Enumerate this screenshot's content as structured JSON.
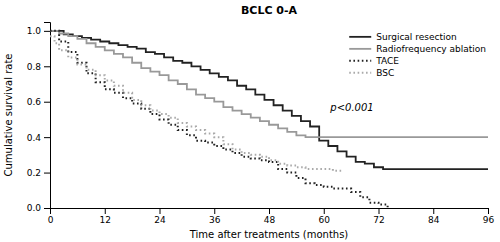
{
  "chart_data": {
    "type": "step",
    "title": "BCLC 0-A",
    "xlabel": "Time after treatments (months)",
    "ylabel": "Cumulative survival rate",
    "annotation": "p<0.001",
    "xlim": [
      0,
      96
    ],
    "ylim": [
      0.0,
      1.05
    ],
    "xticks": [
      0,
      12,
      24,
      36,
      48,
      60,
      72,
      84,
      96
    ],
    "yticks": [
      {
        "value": 0.0,
        "label": "0.0"
      },
      0.2,
      0.4,
      0.6,
      0.8,
      {
        "value": 1.0,
        "label": "1.0"
      }
    ],
    "legend": "upper-right",
    "series": [
      {
        "name": "Surgical resection",
        "color": "#222222",
        "line_style": "solid",
        "x": [
          0,
          3,
          5,
          7,
          9,
          11,
          13,
          15,
          17,
          19,
          21,
          23,
          25,
          27,
          29,
          31,
          33,
          35,
          37,
          39,
          41,
          43,
          45,
          47,
          49,
          51,
          53,
          55,
          57,
          59,
          61,
          63,
          65,
          67,
          69,
          71,
          73,
          96
        ],
        "values": [
          1.0,
          0.98,
          0.97,
          0.96,
          0.95,
          0.94,
          0.93,
          0.92,
          0.91,
          0.9,
          0.88,
          0.87,
          0.85,
          0.83,
          0.82,
          0.8,
          0.78,
          0.76,
          0.74,
          0.72,
          0.69,
          0.67,
          0.64,
          0.61,
          0.58,
          0.55,
          0.52,
          0.49,
          0.46,
          0.38,
          0.35,
          0.32,
          0.29,
          0.26,
          0.25,
          0.23,
          0.22,
          0.22
        ]
      },
      {
        "name": "Radiofrequency ablation",
        "color": "#999999",
        "line_style": "solid",
        "x": [
          0,
          2,
          4,
          6,
          8,
          10,
          12,
          14,
          16,
          18,
          20,
          22,
          24,
          26,
          28,
          30,
          32,
          34,
          36,
          38,
          40,
          42,
          44,
          46,
          48,
          50,
          52,
          54,
          56,
          58,
          60,
          96
        ],
        "values": [
          1.0,
          0.985,
          0.97,
          0.955,
          0.93,
          0.91,
          0.89,
          0.87,
          0.85,
          0.82,
          0.79,
          0.77,
          0.75,
          0.72,
          0.7,
          0.67,
          0.64,
          0.62,
          0.6,
          0.57,
          0.55,
          0.53,
          0.51,
          0.49,
          0.47,
          0.45,
          0.43,
          0.41,
          0.4,
          0.4,
          0.4,
          0.4
        ]
      },
      {
        "name": "TACE",
        "color": "#222222",
        "line_style": "dotted",
        "x": [
          0,
          2,
          4,
          6,
          8,
          10,
          12,
          14,
          16,
          18,
          20,
          22,
          24,
          26,
          28,
          30,
          32,
          34,
          36,
          38,
          40,
          42,
          44,
          46,
          48,
          50,
          52,
          54,
          56,
          58,
          60,
          62,
          64,
          66,
          68,
          70,
          72,
          74
        ],
        "values": [
          1.0,
          0.94,
          0.88,
          0.82,
          0.76,
          0.71,
          0.67,
          0.65,
          0.62,
          0.59,
          0.56,
          0.53,
          0.5,
          0.47,
          0.44,
          0.41,
          0.38,
          0.37,
          0.35,
          0.33,
          0.31,
          0.29,
          0.28,
          0.27,
          0.26,
          0.22,
          0.2,
          0.17,
          0.14,
          0.13,
          0.12,
          0.11,
          0.11,
          0.09,
          0.06,
          0.03,
          0.02,
          0.0
        ]
      },
      {
        "name": "BSC",
        "color": "#aaaaaa",
        "line_style": "dotted",
        "x": [
          0,
          1,
          2,
          4,
          6,
          8,
          10,
          12,
          14,
          16,
          18,
          20,
          22,
          24,
          26,
          28,
          30,
          32,
          34,
          36,
          38,
          40,
          42,
          44,
          46,
          48,
          50,
          52,
          54,
          56,
          58,
          60,
          62,
          64
        ],
        "values": [
          0.97,
          0.93,
          0.89,
          0.85,
          0.81,
          0.78,
          0.75,
          0.72,
          0.69,
          0.65,
          0.61,
          0.58,
          0.55,
          0.53,
          0.51,
          0.48,
          0.46,
          0.44,
          0.42,
          0.4,
          0.36,
          0.33,
          0.31,
          0.3,
          0.29,
          0.27,
          0.25,
          0.24,
          0.23,
          0.22,
          0.22,
          0.22,
          0.21,
          0.21
        ]
      }
    ]
  }
}
